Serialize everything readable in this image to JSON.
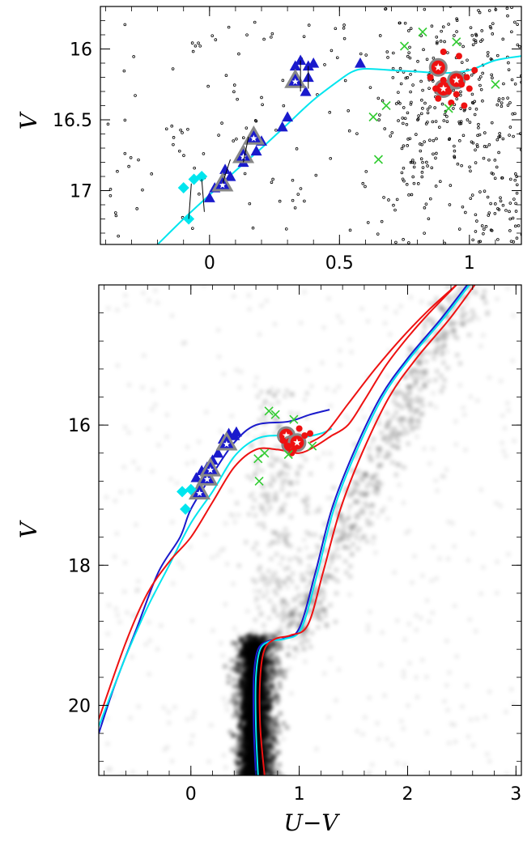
{
  "chart_data": [
    {
      "panel": "top",
      "type": "scatter",
      "title": "",
      "xlabel": "",
      "ylabel": "V",
      "xlim": [
        -0.42,
        1.2
      ],
      "ylim": [
        17.38,
        15.7
      ],
      "x_ticks": [
        0,
        0.5,
        1
      ],
      "x_tick_labels": [
        "0",
        "0.5",
        "1"
      ],
      "y_ticks": [
        16,
        16.5,
        17
      ],
      "y_tick_labels": [
        "16",
        "16.5",
        "17"
      ],
      "grid": false,
      "legend": "none",
      "colors": {
        "blue": "#1a1acc",
        "cyan": "#00e5ee",
        "red": "#ee1111",
        "green": "#33cc33",
        "gray": "#888888"
      },
      "series": [
        {
          "marker": "cyan-curve",
          "points": [
            [
              -0.2,
              17.38
            ],
            [
              -0.1,
              17.2
            ],
            [
              0,
              17.03
            ],
            [
              0.1,
              16.86
            ],
            [
              0.2,
              16.7
            ],
            [
              0.3,
              16.53
            ],
            [
              0.4,
              16.36
            ],
            [
              0.5,
              16.22
            ],
            [
              0.55,
              16.16
            ],
            [
              0.6,
              16.14
            ],
            [
              0.7,
              16.15
            ],
            [
              0.8,
              16.16
            ],
            [
              0.9,
              16.17
            ],
            [
              1.0,
              16.15
            ],
            [
              1.1,
              16.08
            ],
            [
              1.2,
              16.05
            ]
          ]
        },
        {
          "marker": "blue-triangle",
          "points": [
            [
              0.0,
              17.05
            ],
            [
              0.02,
              16.98
            ],
            [
              0.06,
              16.85
            ],
            [
              0.08,
              16.9
            ],
            [
              0.12,
              16.75
            ],
            [
              0.13,
              16.8
            ],
            [
              0.16,
              16.62
            ],
            [
              0.18,
              16.72
            ],
            [
              0.2,
              16.65
            ],
            [
              0.28,
              16.55
            ],
            [
              0.3,
              16.48
            ],
            [
              0.33,
              16.12
            ],
            [
              0.34,
              16.22
            ],
            [
              0.35,
              16.08
            ],
            [
              0.37,
              16.3
            ],
            [
              0.38,
              16.12
            ],
            [
              0.38,
              16.2
            ],
            [
              0.4,
              16.1
            ],
            [
              0.58,
              16.1
            ]
          ]
        },
        {
          "marker": "gray-triangle-star",
          "points": [
            [
              0.05,
              16.95
            ],
            [
              0.13,
              16.75
            ],
            [
              0.17,
              16.62
            ],
            [
              0.33,
              16.22
            ]
          ]
        },
        {
          "marker": "cyan-diamond",
          "points": [
            [
              -0.08,
              17.2
            ],
            [
              -0.1,
              16.98
            ],
            [
              -0.06,
              16.92
            ],
            [
              -0.03,
              16.9
            ]
          ]
        },
        {
          "marker": "red-circle-star",
          "points": [
            [
              0.88,
              16.13
            ],
            [
              0.9,
              16.28
            ],
            [
              0.95,
              16.22
            ]
          ]
        },
        {
          "marker": "red-dot",
          "points": [
            [
              0.85,
              16.2
            ],
            [
              0.87,
              16.28
            ],
            [
              0.9,
              16.22
            ],
            [
              0.92,
              16.3
            ],
            [
              0.95,
              16.32
            ],
            [
              0.97,
              16.25
            ],
            [
              0.99,
              16.2
            ],
            [
              1.0,
              16.28
            ],
            [
              0.93,
              16.38
            ],
            [
              0.96,
              16.05
            ],
            [
              0.9,
              16.02
            ],
            [
              1.02,
              16.15
            ],
            [
              0.88,
              16.35
            ],
            [
              0.98,
              16.4
            ]
          ]
        },
        {
          "marker": "green-cross",
          "points": [
            [
              0.82,
              15.88
            ],
            [
              0.75,
              15.98
            ],
            [
              0.95,
              15.95
            ],
            [
              0.63,
              16.48
            ],
            [
              0.68,
              16.4
            ],
            [
              0.65,
              16.78
            ],
            [
              1.1,
              16.25
            ],
            [
              0.92,
              16.42
            ]
          ]
        }
      ]
    },
    {
      "panel": "bottom",
      "type": "line",
      "title": "",
      "xlabel": "U−V",
      "ylabel": "V",
      "xlim": [
        -0.85,
        3.05
      ],
      "ylim": [
        21.0,
        14.0
      ],
      "x_ticks": [
        0,
        1,
        2,
        3
      ],
      "x_tick_labels": [
        "0",
        "1",
        "2",
        "3"
      ],
      "y_ticks": [
        16,
        18,
        20
      ],
      "y_tick_labels": [
        "16",
        "18",
        "20"
      ],
      "grid": false,
      "legend": "none",
      "colors": {
        "blue": "#1a1acc",
        "cyan": "#00e5ee",
        "red": "#ee1111",
        "green": "#33cc33",
        "background": "#000000"
      },
      "series": [
        {
          "marker": "blue-curve",
          "points": [
            [
              -0.85,
              20.4
            ],
            [
              -0.7,
              19.7
            ],
            [
              -0.5,
              18.9
            ],
            [
              -0.3,
              18.1
            ],
            [
              -0.1,
              17.6
            ],
            [
              0.0,
              17.2
            ],
            [
              0.2,
              16.7
            ],
            [
              0.4,
              16.25
            ],
            [
              0.6,
              16.0
            ],
            [
              0.9,
              15.95
            ],
            [
              1.1,
              15.85
            ],
            [
              1.28,
              15.78
            ]
          ]
        },
        {
          "marker": "cyan-curve",
          "points": [
            [
              -0.85,
              20.3
            ],
            [
              -0.6,
              19.3
            ],
            [
              -0.4,
              18.6
            ],
            [
              -0.2,
              18.0
            ],
            [
              0.0,
              17.4
            ],
            [
              0.2,
              16.95
            ],
            [
              0.4,
              16.45
            ],
            [
              0.6,
              16.2
            ],
            [
              0.8,
              16.15
            ],
            [
              1.0,
              16.18
            ],
            [
              1.2,
              16.12
            ],
            [
              1.3,
              16.05
            ]
          ]
        },
        {
          "marker": "red-curve",
          "points": [
            [
              -0.85,
              20.2
            ],
            [
              -0.6,
              19.1
            ],
            [
              -0.4,
              18.4
            ],
            [
              -0.2,
              17.95
            ],
            [
              0.0,
              17.6
            ],
            [
              0.2,
              17.1
            ],
            [
              0.4,
              16.6
            ],
            [
              0.6,
              16.35
            ],
            [
              0.8,
              16.35
            ],
            [
              1.0,
              16.4
            ],
            [
              1.15,
              16.3
            ],
            [
              1.3,
              16.15
            ]
          ]
        },
        {
          "marker": "rgb-blue-curve",
          "points": [
            [
              0.6,
              21.0
            ],
            [
              0.58,
              20.3
            ],
            [
              0.58,
              19.6
            ],
            [
              0.62,
              19.2
            ],
            [
              0.72,
              19.08
            ],
            [
              0.85,
              19.05
            ],
            [
              1.0,
              18.9
            ],
            [
              1.15,
              18.1
            ],
            [
              1.3,
              17.2
            ],
            [
              1.5,
              16.4
            ],
            [
              1.75,
              15.6
            ],
            [
              2.0,
              15.05
            ],
            [
              2.3,
              14.5
            ],
            [
              2.55,
              14.0
            ]
          ]
        },
        {
          "marker": "rgb-cyan-curve",
          "points": [
            [
              0.62,
              21.0
            ],
            [
              0.6,
              20.3
            ],
            [
              0.6,
              19.6
            ],
            [
              0.64,
              19.2
            ],
            [
              0.74,
              19.08
            ],
            [
              0.87,
              19.05
            ],
            [
              1.02,
              18.9
            ],
            [
              1.17,
              18.1
            ],
            [
              1.32,
              17.2
            ],
            [
              1.52,
              16.4
            ],
            [
              1.77,
              15.6
            ],
            [
              2.02,
              15.05
            ],
            [
              2.32,
              14.5
            ],
            [
              2.57,
              14.0
            ]
          ]
        },
        {
          "marker": "rgb-red-curve",
          "points": [
            [
              0.68,
              21.0
            ],
            [
              0.64,
              20.3
            ],
            [
              0.64,
              19.6
            ],
            [
              0.68,
              19.2
            ],
            [
              0.78,
              19.05
            ],
            [
              0.92,
              19.0
            ],
            [
              1.08,
              18.85
            ],
            [
              1.22,
              18.1
            ],
            [
              1.38,
              17.2
            ],
            [
              1.58,
              16.4
            ],
            [
              1.83,
              15.6
            ],
            [
              2.08,
              15.05
            ],
            [
              2.38,
              14.5
            ],
            [
              2.62,
              14.0
            ]
          ]
        },
        {
          "marker": "agb-red-curve",
          "points": [
            [
              1.3,
              16.15
            ],
            [
              1.45,
              16.0
            ],
            [
              1.6,
              15.65
            ],
            [
              1.8,
              15.15
            ],
            [
              2.0,
              14.75
            ],
            [
              2.2,
              14.4
            ],
            [
              2.45,
              14.0
            ]
          ]
        },
        {
          "marker": "agb-red2-curve",
          "points": [
            [
              1.1,
              16.25
            ],
            [
              1.25,
              16.1
            ],
            [
              1.45,
              15.7
            ],
            [
              1.7,
              15.2
            ],
            [
              1.95,
              14.75
            ],
            [
              2.2,
              14.35
            ],
            [
              2.45,
              14.0
            ]
          ]
        },
        {
          "marker": "blue-triangle",
          "points": [
            [
              0.05,
              16.75
            ],
            [
              0.1,
              16.65
            ],
            [
              0.15,
              16.6
            ],
            [
              0.2,
              16.5
            ],
            [
              0.25,
              16.4
            ],
            [
              0.3,
              16.2
            ],
            [
              0.35,
              16.12
            ],
            [
              0.4,
              16.15
            ],
            [
              0.42,
              16.1
            ]
          ]
        },
        {
          "marker": "gray-triangle-star",
          "points": [
            [
              0.08,
              16.95
            ],
            [
              0.15,
              16.75
            ],
            [
              0.18,
              16.62
            ],
            [
              0.33,
              16.25
            ]
          ]
        },
        {
          "marker": "cyan-diamond",
          "points": [
            [
              -0.05,
              17.2
            ],
            [
              -0.08,
              16.95
            ],
            [
              0.0,
              16.92
            ]
          ]
        },
        {
          "marker": "red-circle-star",
          "points": [
            [
              0.88,
              16.15
            ],
            [
              0.92,
              16.28
            ],
            [
              0.98,
              16.25
            ]
          ]
        },
        {
          "marker": "red-dot",
          "points": [
            [
              0.85,
              16.22
            ],
            [
              0.9,
              16.3
            ],
            [
              0.95,
              16.35
            ],
            [
              1.0,
              16.05
            ],
            [
              1.05,
              16.15
            ],
            [
              1.1,
              16.12
            ],
            [
              0.93,
              16.4
            ]
          ]
        },
        {
          "marker": "green-cross",
          "points": [
            [
              0.78,
              15.85
            ],
            [
              0.72,
              15.8
            ],
            [
              0.95,
              15.92
            ],
            [
              0.62,
              16.48
            ],
            [
              0.68,
              16.4
            ],
            [
              0.63,
              16.8
            ],
            [
              0.9,
              16.42
            ],
            [
              1.12,
              16.3
            ]
          ]
        }
      ]
    }
  ]
}
